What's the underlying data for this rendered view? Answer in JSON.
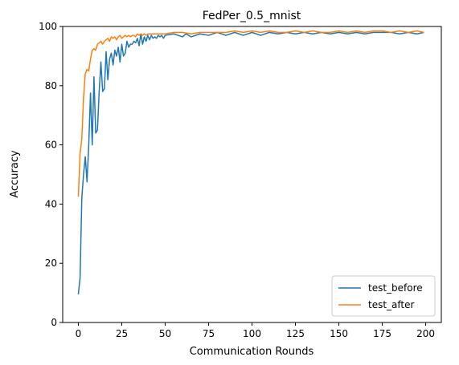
{
  "chart_data": {
    "type": "line",
    "title": "FedPer_0.5_mnist",
    "xlabel": "Communication Rounds",
    "ylabel": "Accuracy",
    "xlim": [
      -9,
      209
    ],
    "ylim": [
      0,
      100
    ],
    "xticks": [
      0,
      25,
      50,
      75,
      100,
      125,
      150,
      175,
      200
    ],
    "yticks": [
      0,
      20,
      40,
      60,
      80,
      100
    ],
    "grid": false,
    "legend_position": "lower right",
    "series": [
      {
        "name": "test_before",
        "color": "#1f77b4",
        "points": [
          [
            0,
            9.5
          ],
          [
            1,
            15
          ],
          [
            2,
            42
          ],
          [
            3,
            50
          ],
          [
            4,
            56
          ],
          [
            5,
            47.5
          ],
          [
            6,
            60
          ],
          [
            7,
            77.5
          ],
          [
            8,
            60
          ],
          [
            9,
            83
          ],
          [
            10,
            64
          ],
          [
            11,
            65
          ],
          [
            12,
            78
          ],
          [
            13,
            88
          ],
          [
            14,
            78
          ],
          [
            15,
            79
          ],
          [
            16,
            91.5
          ],
          [
            17,
            82
          ],
          [
            18,
            89
          ],
          [
            19,
            91
          ],
          [
            20,
            87
          ],
          [
            21,
            92
          ],
          [
            22,
            90
          ],
          [
            23,
            93
          ],
          [
            24,
            88
          ],
          [
            25,
            94
          ],
          [
            26,
            90
          ],
          [
            27,
            91
          ],
          [
            28,
            95
          ],
          [
            29,
            93
          ],
          [
            30,
            94
          ],
          [
            31,
            94
          ],
          [
            32,
            95
          ],
          [
            33,
            94.5
          ],
          [
            34,
            96
          ],
          [
            35,
            93.5
          ],
          [
            36,
            97.5
          ],
          [
            37,
            94
          ],
          [
            38,
            96.5
          ],
          [
            39,
            95
          ],
          [
            40,
            97
          ],
          [
            41,
            95.5
          ],
          [
            42,
            97
          ],
          [
            43,
            96
          ],
          [
            44,
            96.5
          ],
          [
            45,
            96
          ],
          [
            46,
            97
          ],
          [
            47,
            96.5
          ],
          [
            48,
            97
          ],
          [
            49,
            96
          ],
          [
            50,
            97
          ],
          [
            55,
            97.5
          ],
          [
            60,
            96.5
          ],
          [
            62,
            97.5
          ],
          [
            65,
            96.5
          ],
          [
            70,
            97.5
          ],
          [
            75,
            97
          ],
          [
            80,
            98
          ],
          [
            85,
            97
          ],
          [
            90,
            98
          ],
          [
            95,
            97
          ],
          [
            100,
            98
          ],
          [
            105,
            97
          ],
          [
            110,
            98
          ],
          [
            115,
            97.5
          ],
          [
            120,
            98
          ],
          [
            125,
            97.5
          ],
          [
            130,
            98
          ],
          [
            135,
            97.5
          ],
          [
            140,
            98
          ],
          [
            145,
            97.5
          ],
          [
            150,
            98
          ],
          [
            155,
            97.5
          ],
          [
            160,
            98
          ],
          [
            165,
            97.5
          ],
          [
            170,
            98
          ],
          [
            175,
            98
          ],
          [
            180,
            98
          ],
          [
            185,
            97.5
          ],
          [
            190,
            98
          ],
          [
            195,
            97.5
          ],
          [
            199,
            98
          ]
        ]
      },
      {
        "name": "test_after",
        "color": "#ff7f0e",
        "points": [
          [
            0,
            42.5
          ],
          [
            1,
            57
          ],
          [
            2,
            62
          ],
          [
            3,
            76
          ],
          [
            4,
            84
          ],
          [
            5,
            85.5
          ],
          [
            6,
            85
          ],
          [
            7,
            89
          ],
          [
            8,
            92
          ],
          [
            9,
            92.5
          ],
          [
            10,
            92
          ],
          [
            11,
            94
          ],
          [
            12,
            94.5
          ],
          [
            13,
            95
          ],
          [
            14,
            94
          ],
          [
            15,
            95
          ],
          [
            16,
            95.5
          ],
          [
            17,
            96
          ],
          [
            18,
            95
          ],
          [
            19,
            96.5
          ],
          [
            20,
            96
          ],
          [
            21,
            96.5
          ],
          [
            22,
            95.5
          ],
          [
            23,
            96.5
          ],
          [
            24,
            97
          ],
          [
            25,
            96
          ],
          [
            26,
            96.5
          ],
          [
            27,
            97
          ],
          [
            28,
            96.5
          ],
          [
            29,
            97
          ],
          [
            30,
            96.5
          ],
          [
            31,
            97
          ],
          [
            32,
            97
          ],
          [
            33,
            96.5
          ],
          [
            34,
            97.5
          ],
          [
            35,
            97
          ],
          [
            36,
            97.5
          ],
          [
            37,
            97
          ],
          [
            38,
            97.5
          ],
          [
            39,
            97
          ],
          [
            40,
            97.5
          ],
          [
            45,
            97.5
          ],
          [
            50,
            97.5
          ],
          [
            55,
            98
          ],
          [
            60,
            98
          ],
          [
            65,
            97.5
          ],
          [
            70,
            98
          ],
          [
            75,
            98
          ],
          [
            80,
            98
          ],
          [
            85,
            98
          ],
          [
            90,
            98.5
          ],
          [
            95,
            98
          ],
          [
            100,
            98.5
          ],
          [
            105,
            98
          ],
          [
            110,
            98.5
          ],
          [
            115,
            98
          ],
          [
            120,
            98
          ],
          [
            125,
            98.5
          ],
          [
            130,
            98
          ],
          [
            135,
            98.5
          ],
          [
            140,
            98
          ],
          [
            145,
            98
          ],
          [
            150,
            98.5
          ],
          [
            155,
            98
          ],
          [
            160,
            98.5
          ],
          [
            165,
            98
          ],
          [
            170,
            98.5
          ],
          [
            175,
            98.5
          ],
          [
            180,
            98
          ],
          [
            185,
            98.5
          ],
          [
            190,
            98
          ],
          [
            195,
            98.5
          ],
          [
            199,
            98
          ]
        ]
      }
    ]
  }
}
